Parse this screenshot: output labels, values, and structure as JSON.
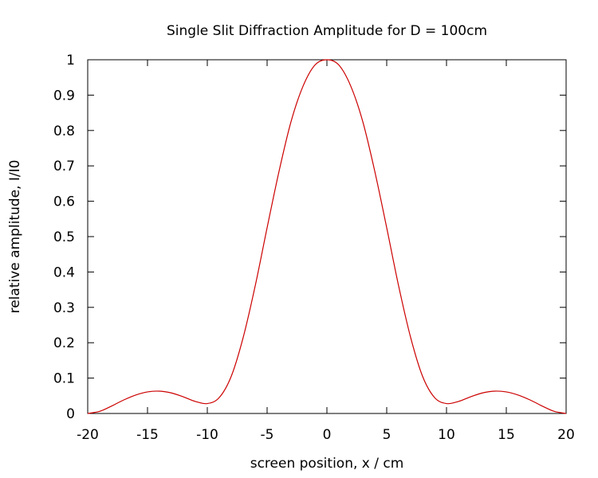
{
  "chart_data": {
    "type": "line",
    "title": "Single Slit Diffraction Amplitude for D = 100cm",
    "xlabel": "screen position, x / cm",
    "ylabel": "relative amplitude, I/I0",
    "xlim": [
      -20,
      20
    ],
    "ylim": [
      0,
      1
    ],
    "xticks": [
      -20,
      -15,
      -10,
      -5,
      0,
      5,
      10,
      15,
      20
    ],
    "yticks": [
      0,
      0.1,
      0.2,
      0.3,
      0.4,
      0.5,
      0.6,
      0.7,
      0.8,
      0.9,
      1
    ],
    "xtick_labels": [
      "-20",
      "-15",
      "-10",
      "-5",
      "0",
      "5",
      "10",
      "15",
      "20"
    ],
    "ytick_labels": [
      "0",
      "0.1",
      "0.2",
      "0.3",
      "0.4",
      "0.5",
      "0.6",
      "0.7",
      "0.8",
      "0.9",
      "1"
    ],
    "grid": false,
    "series": [
      {
        "color": "#cc0000",
        "x": [
          -20,
          -19,
          -18,
          -17,
          -16,
          -15,
          -14,
          -13,
          -12,
          -11,
          -10,
          -9,
          -8,
          -7,
          -6,
          -5,
          -4,
          -3,
          -2,
          -1,
          0,
          1,
          2,
          3,
          4,
          5,
          6,
          7,
          8,
          9,
          10,
          11,
          12,
          13,
          14,
          15,
          16,
          17,
          18,
          19,
          20
        ],
        "y": [
          0.0,
          0.006,
          0.021,
          0.038,
          0.052,
          0.061,
          0.063,
          0.058,
          0.047,
          0.034,
          0.028,
          0.045,
          0.105,
          0.215,
          0.36,
          0.525,
          0.685,
          0.825,
          0.925,
          0.985,
          1.0,
          0.985,
          0.925,
          0.825,
          0.685,
          0.525,
          0.36,
          0.215,
          0.105,
          0.045,
          0.028,
          0.034,
          0.047,
          0.058,
          0.063,
          0.061,
          0.052,
          0.038,
          0.021,
          0.006,
          0.0
        ]
      }
    ]
  }
}
